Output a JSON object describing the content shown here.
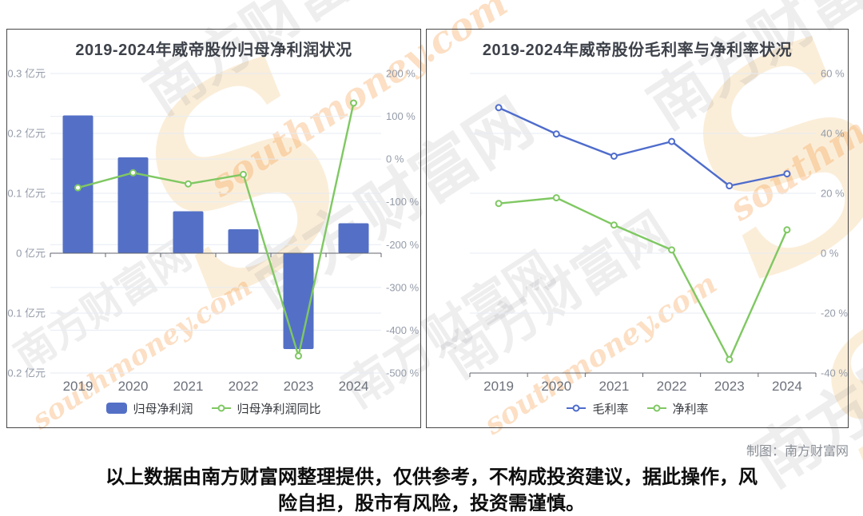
{
  "page": {
    "credit": "制图：南方财富网",
    "disclaimer": "以上数据由南方财富网整理提供，仅供参考，不构成投资建议，据此操作，风\n险自担，股市有风险，投资需谨慎。",
    "watermark": {
      "cn": "南方财富网",
      "en": "southmoney.com",
      "swoosh": "S"
    },
    "colors": {
      "grid": "#E6EBF3",
      "axis": "#61656D",
      "y_label": "#949BA8",
      "x_label": "#6C717B"
    }
  },
  "chart_data": [
    {
      "type": "bar",
      "title": "2019-2024年威帝股份归母净利润状况",
      "categories": [
        "2019",
        "2020",
        "2021",
        "2022",
        "2023",
        "2024"
      ],
      "series": [
        {
          "name": "归母净利润",
          "type": "bar",
          "axis": "left",
          "unit": "亿元",
          "values": [
            0.23,
            0.16,
            0.07,
            0.04,
            -0.16,
            0.05
          ],
          "color": "#5470C6"
        },
        {
          "name": "归母净利润同比",
          "type": "line",
          "axis": "right",
          "unit": "%",
          "values": [
            -67,
            -32,
            -58,
            -36,
            -460,
            131
          ],
          "color": "#7FC862"
        }
      ],
      "left_axis": {
        "max": 0.3,
        "min": -0.2,
        "tick_step": 0.1,
        "unit": "亿元",
        "labels": [
          "0.3 亿元",
          "0.2 亿元",
          "0.1 亿元",
          "0 亿元",
          "-0.1 亿元",
          "-0.2 亿元"
        ]
      },
      "right_axis": {
        "max": 200,
        "min": -500,
        "tick_step": 100,
        "unit": "%",
        "labels": [
          "200 %",
          "100 %",
          "0 %",
          "-100 %",
          "-200 %",
          "-300 %",
          "-400 %",
          "-500 %"
        ]
      },
      "grid": true,
      "legend_position": "bottom"
    },
    {
      "type": "line",
      "title": "2019-2024年威帝股份毛利率与净利率状况",
      "categories": [
        "2019",
        "2020",
        "2021",
        "2022",
        "2023",
        "2024"
      ],
      "series": [
        {
          "name": "毛利率",
          "type": "line",
          "unit": "%",
          "values": [
            48.6,
            39.8,
            32.4,
            37.3,
            22.5,
            26.5
          ],
          "color": "#4E6CCC"
        },
        {
          "name": "净利率",
          "type": "line",
          "unit": "%",
          "values": [
            16.6,
            18.5,
            9.4,
            1.1,
            -35.5,
            7.8
          ],
          "color": "#7FC862"
        }
      ],
      "y_axis": {
        "max": 60,
        "min": -40,
        "tick_step": 20,
        "unit": "%",
        "labels": [
          "60 %",
          "40 %",
          "20 %",
          "0 %",
          "-20 %",
          "-40 %"
        ]
      },
      "grid": true,
      "legend_position": "bottom"
    }
  ]
}
